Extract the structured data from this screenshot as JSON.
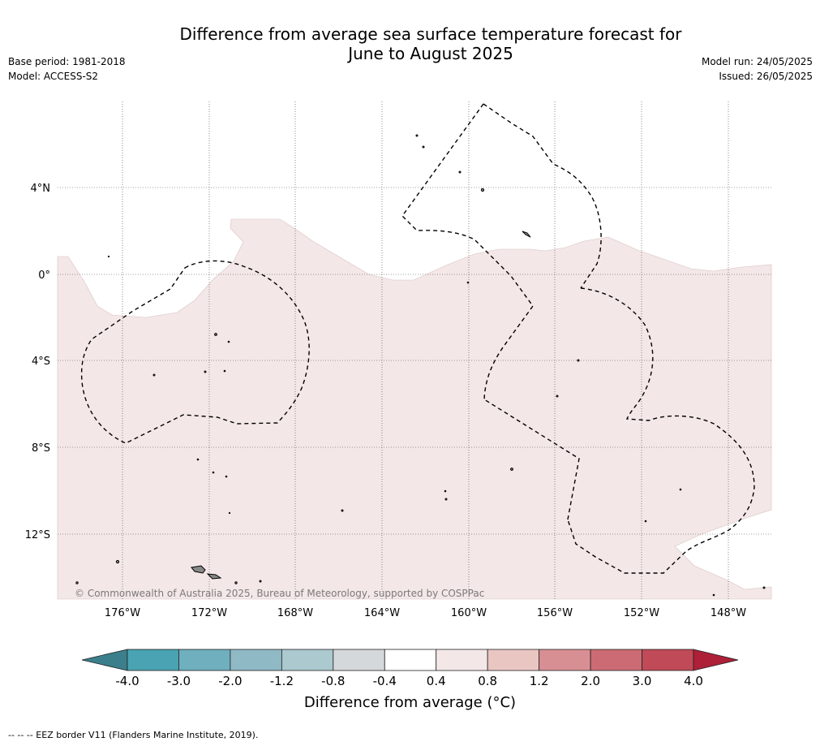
{
  "title_line1": "Difference from average sea surface temperature forecast for",
  "title_line2": "June to August 2025",
  "base_period": "Base period: 1981-2018",
  "model": "Model: ACCESS-S2",
  "model_run": "Model run: 24/05/2025",
  "issued": "Issued: 26/05/2025",
  "lat_labels": [
    "4°N",
    "0°",
    "4°S",
    "8°S",
    "12°S"
  ],
  "lon_labels": [
    "176°W",
    "172°W",
    "168°W",
    "164°W",
    "160°W",
    "156°W",
    "152°W",
    "148°W"
  ],
  "copyright": "© Commonwealth of Australia 2025, Bureau of Meteorology, supported by COSPPac",
  "colorbar": {
    "ticks": [
      "-4.0",
      "-3.0",
      "-2.0",
      "-1.2",
      "-0.8",
      "-0.4",
      "0.4",
      "0.8",
      "1.2",
      "2.0",
      "3.0",
      "4.0"
    ],
    "colors": [
      "#3b7f8c",
      "#4aa3b3",
      "#6fafbe",
      "#8fb9c5",
      "#abc9cf",
      "#d5d8da",
      "#ffffff",
      "#f4e7e7",
      "#e9c6c2",
      "#d88f94",
      "#cc6b74",
      "#c04a58",
      "#ae1f38"
    ],
    "title": "Difference from average (°C)"
  },
  "map_fill_color": "#f4e7e7",
  "footnote": "-- -- -- EEZ border V11 (Flanders Marine Institute, 2019)."
}
